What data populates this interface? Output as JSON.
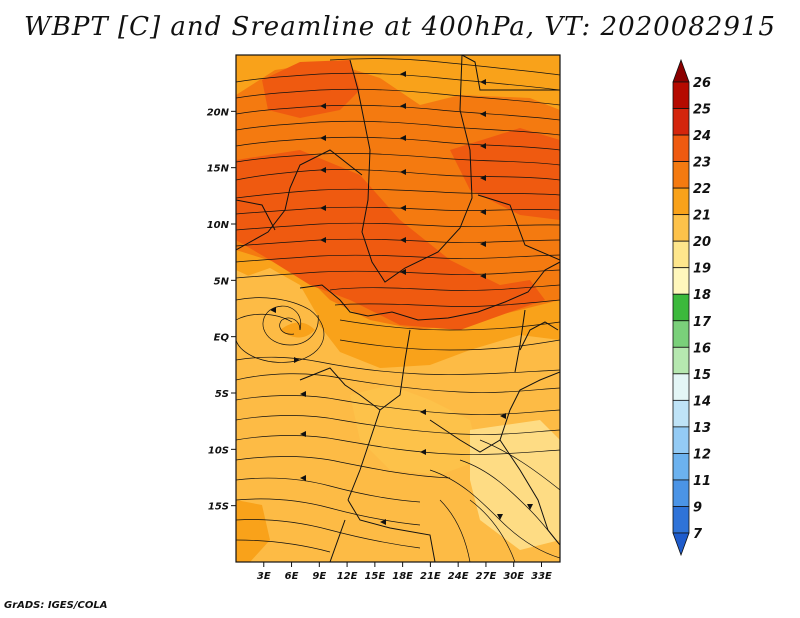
{
  "title": "WBPT [C] and Sreamline at 400hPa, VT: 2020082915",
  "credit": "GrADS: IGES/COLA",
  "map": {
    "lat_labels": [
      "20N",
      "15N",
      "10N",
      "5N",
      "EQ",
      "5S",
      "10S",
      "15S"
    ],
    "lat_values": [
      20,
      15,
      10,
      5,
      0,
      -5,
      -10,
      -15
    ],
    "lon_labels": [
      "3E",
      "6E",
      "9E",
      "12E",
      "15E",
      "18E",
      "21E",
      "24E",
      "27E",
      "30E",
      "33E"
    ],
    "lon_values": [
      3,
      6,
      9,
      12,
      15,
      18,
      21,
      24,
      27,
      30,
      33
    ],
    "lon_range": [
      0,
      35
    ],
    "lat_range": [
      -20,
      25
    ],
    "field_colors": {
      "c19": "#fee08b",
      "c20": "#fdbb45",
      "c21": "#f9a21a",
      "c22": "#f47a10",
      "c23": "#ef5a10"
    }
  },
  "colorbar": {
    "labels": [
      "26",
      "25",
      "24",
      "23",
      "22",
      "21",
      "20",
      "19",
      "18",
      "17",
      "16",
      "15",
      "14",
      "13",
      "12",
      "11",
      "9",
      "7"
    ],
    "colors": [
      "#8b0000",
      "#b50a00",
      "#d4250c",
      "#ef5a10",
      "#f47a10",
      "#f9a21a",
      "#fdc24a",
      "#fee68c",
      "#fff7bc",
      "#3cb93c",
      "#7ad07a",
      "#b6e8b0",
      "#e4f6f6",
      "#bfe3f7",
      "#94cbf5",
      "#6cb2ef",
      "#4b94e6",
      "#2f73d8",
      "#1f5ccc"
    ]
  }
}
